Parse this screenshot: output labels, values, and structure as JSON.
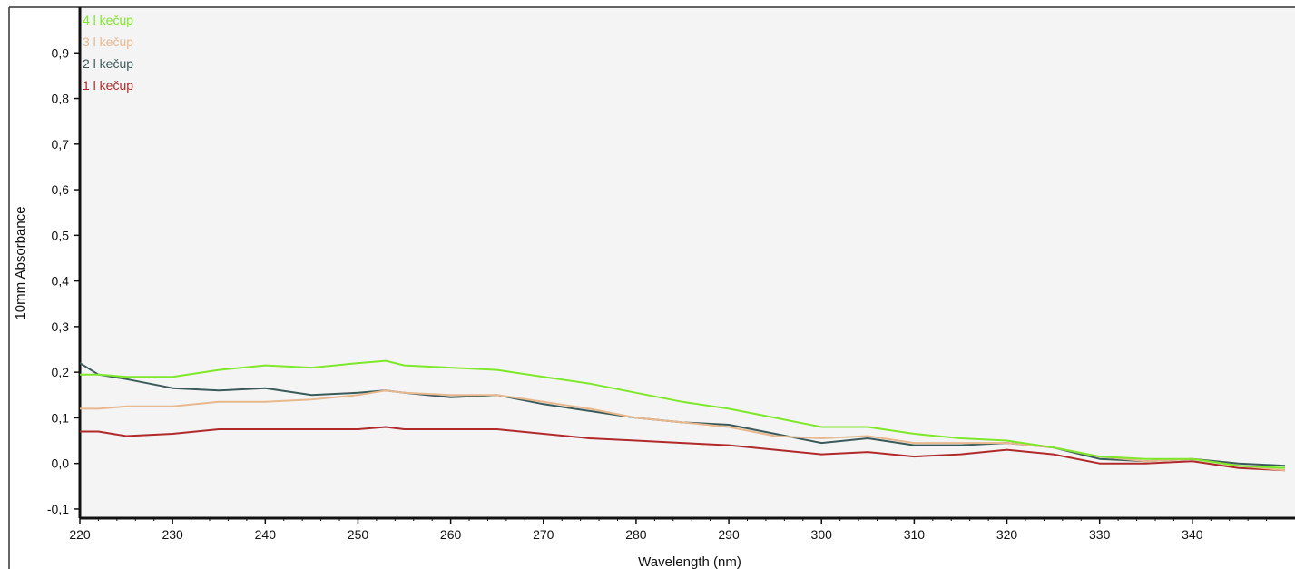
{
  "chart_data": {
    "type": "line",
    "title": "",
    "xlabel": "Wavelength (nm)",
    "ylabel": "10mm Absorbance",
    "xlim": [
      220,
      350
    ],
    "ylim": [
      -0.12,
      1.0
    ],
    "grid": false,
    "legend_position": "top-left",
    "x_ticks": [
      220,
      230,
      240,
      250,
      260,
      270,
      280,
      290,
      300,
      310,
      320,
      330,
      340
    ],
    "x_tick_labels": [
      "220",
      "230",
      "240",
      "250",
      "260",
      "270",
      "280",
      "290",
      "300",
      "310",
      "320",
      "330",
      "340"
    ],
    "y_ticks": [
      0.9,
      0.8,
      0.7,
      0.6,
      0.5,
      0.4,
      0.3,
      0.2,
      0.1,
      0.0,
      -0.1
    ],
    "y_tick_labels": [
      "0,9",
      "0,8",
      "0,7",
      "0,6",
      "0,5",
      "0,4",
      "0,3",
      "0,2",
      "0,1",
      "0,0",
      "-0,1"
    ],
    "x": [
      220,
      222,
      225,
      230,
      235,
      240,
      245,
      250,
      253,
      255,
      260,
      265,
      270,
      275,
      280,
      285,
      290,
      295,
      300,
      305,
      310,
      315,
      320,
      325,
      330,
      335,
      340,
      345,
      350
    ],
    "series": [
      {
        "name": "4 l kečup",
        "color": "#7ee82a",
        "values": [
          0.195,
          0.195,
          0.19,
          0.19,
          0.205,
          0.215,
          0.21,
          0.22,
          0.225,
          0.215,
          0.21,
          0.205,
          0.19,
          0.175,
          0.155,
          0.135,
          0.12,
          0.1,
          0.08,
          0.08,
          0.065,
          0.055,
          0.05,
          0.035,
          0.015,
          0.01,
          0.01,
          -0.005,
          -0.01
        ]
      },
      {
        "name": "3 l kečup",
        "color": "#e8b88e",
        "values": [
          0.12,
          0.12,
          0.125,
          0.125,
          0.135,
          0.135,
          0.14,
          0.15,
          0.16,
          0.155,
          0.15,
          0.15,
          0.135,
          0.12,
          0.1,
          0.09,
          0.08,
          0.06,
          0.055,
          0.06,
          0.045,
          0.045,
          0.045,
          0.035,
          0.015,
          0.005,
          0.01,
          -0.005,
          -0.015
        ]
      },
      {
        "name": "2 l kečup",
        "color": "#3b5a5a",
        "values": [
          0.22,
          0.195,
          0.185,
          0.165,
          0.16,
          0.165,
          0.15,
          0.155,
          0.16,
          0.155,
          0.145,
          0.15,
          0.13,
          0.115,
          0.1,
          0.09,
          0.085,
          0.065,
          0.045,
          0.055,
          0.04,
          0.04,
          0.045,
          0.035,
          0.01,
          0.005,
          0.01,
          0.0,
          -0.005
        ]
      },
      {
        "name": "1 l kečup",
        "color": "#b02a2a",
        "values": [
          0.07,
          0.07,
          0.06,
          0.065,
          0.075,
          0.075,
          0.075,
          0.075,
          0.08,
          0.075,
          0.075,
          0.075,
          0.065,
          0.055,
          0.05,
          0.045,
          0.04,
          0.03,
          0.02,
          0.025,
          0.015,
          0.02,
          0.03,
          0.02,
          0.0,
          0.0,
          0.005,
          -0.01,
          -0.015
        ]
      }
    ]
  }
}
